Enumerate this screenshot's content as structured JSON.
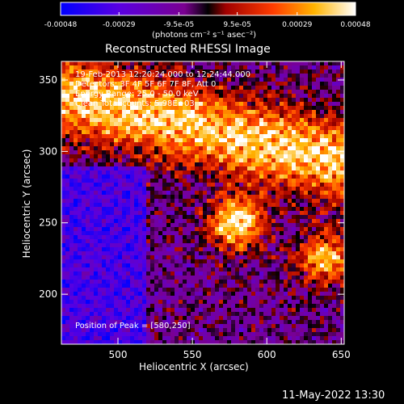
{
  "colorbar": {
    "tick_labels": [
      "-0.00048",
      "-0.00029",
      "-9.5e-05",
      "9.5e-05",
      "0.00029",
      "0.00048"
    ],
    "tick_values": [
      -0.00048,
      -0.00029,
      -9.5e-05,
      9.5e-05,
      0.00029,
      0.00048
    ],
    "range": [
      -0.00048,
      0.00048
    ],
    "unit_label": "(photons cm⁻² s⁻¹ asec⁻²)",
    "colors": [
      "#0000ff",
      "#7a00c8",
      "#c80000",
      "#ff5a00",
      "#ffd200",
      "#ffffff"
    ]
  },
  "chart_data": {
    "type": "heatmap",
    "title": "Reconstructed RHESSI Image",
    "xlabel": "Heliocentric X (arcsec)",
    "ylabel": "Heliocentric Y (arcsec)",
    "xlim": [
      462,
      652
    ],
    "ylim": [
      165,
      363
    ],
    "x_ticks": [
      500,
      550,
      600,
      650
    ],
    "y_ticks": [
      200,
      250,
      300,
      350
    ],
    "peak": [
      580,
      250
    ],
    "annotations": [
      "19-Feb-2013 12:20:24.000 to 12:24:44.000",
      "Detectors: 3F 4F 5F 6F 7F 8F, Att 0",
      "Energy Range: 25.0 - 50.0 keV",
      "Clean     Total counts: 5.98E+03"
    ],
    "peak_label": "Position of Peak = [580,250]"
  },
  "footer": {
    "timestamp": "11-May-2022 13:30"
  }
}
